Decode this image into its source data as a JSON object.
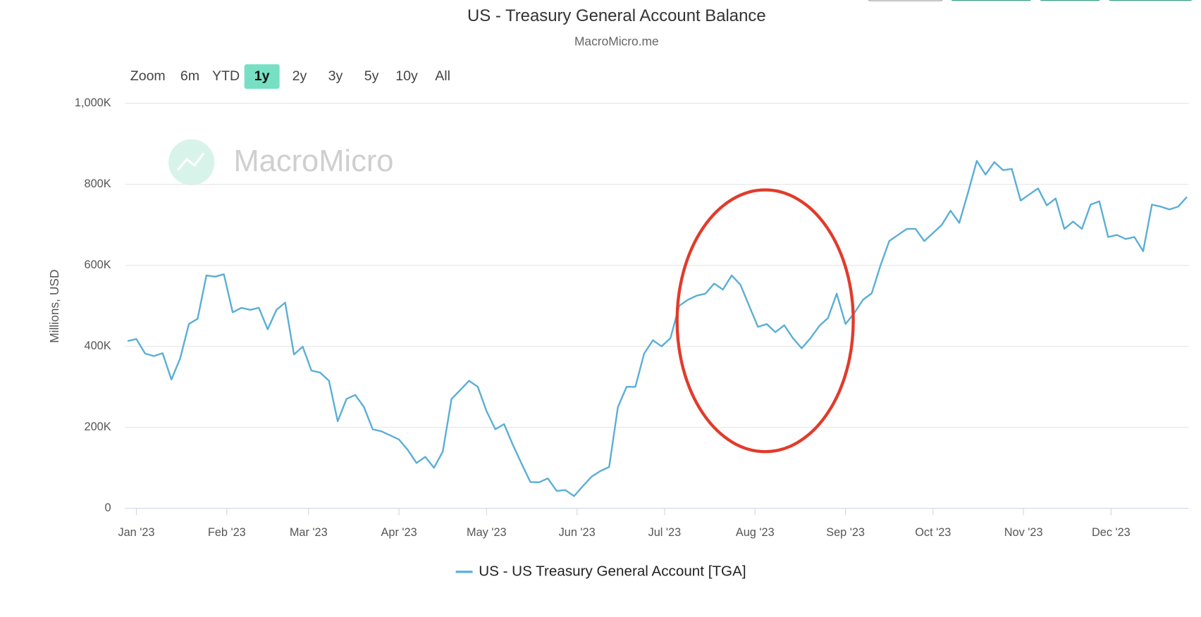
{
  "chart_data": {
    "type": "line",
    "title": "US - Treasury General Account Balance",
    "subtitle": "MacroMicro.me",
    "watermark": "MacroMicro",
    "y_label": "Millions, USD",
    "range_selector": {
      "label": "Zoom",
      "buttons": [
        "6m",
        "YTD",
        "1y",
        "2y",
        "3y",
        "5y",
        "10y",
        "All"
      ],
      "selected": 2
    },
    "grid": true,
    "ylim": [
      0,
      1000000
    ],
    "yticks": [
      0,
      {
        "value": 200000,
        "label": "200K"
      },
      {
        "value": 400000,
        "label": "400K"
      },
      {
        "value": 600000,
        "label": "600K"
      },
      {
        "value": 800000,
        "label": "800K"
      },
      {
        "value": 1000000,
        "label": "1,000K"
      }
    ],
    "xticks": [
      {
        "value": 1,
        "label": "Jan '23"
      },
      {
        "value": 11.333,
        "label": "Feb '23"
      },
      {
        "value": 20.667,
        "label": "Mar '23"
      },
      {
        "value": 31,
        "label": "Apr '23"
      },
      {
        "value": 41,
        "label": "May '23"
      },
      {
        "value": 51.333,
        "label": "Jun '23"
      },
      {
        "value": 61.333,
        "label": "Jul '23"
      },
      {
        "value": 71.667,
        "label": "Aug '23"
      },
      {
        "value": 82,
        "label": "Sep '23"
      },
      {
        "value": 92,
        "label": "Oct '23"
      },
      {
        "value": 102.333,
        "label": "Nov '23"
      },
      {
        "value": 112.333,
        "label": "Dec '23"
      }
    ],
    "categories": [
      null,
      null,
      null,
      null,
      null,
      null,
      null,
      null,
      null,
      null,
      null,
      null,
      null,
      null,
      null,
      null,
      null,
      null,
      null,
      null,
      null,
      null,
      null,
      null,
      null,
      null,
      null,
      null,
      null,
      null,
      null,
      null,
      null,
      null,
      null,
      null,
      null,
      null,
      null,
      null,
      null,
      null,
      null,
      null,
      null,
      null,
      null,
      null,
      null,
      null,
      null,
      null,
      null,
      null,
      null,
      null,
      null,
      null,
      null,
      null,
      null,
      null,
      null,
      null,
      null,
      null,
      null,
      null,
      null,
      null,
      null,
      null,
      null,
      null,
      null,
      null,
      null,
      null,
      null,
      null,
      null,
      null,
      null,
      null,
      null,
      null,
      null,
      null,
      null,
      null,
      null,
      null,
      null,
      null,
      null,
      null,
      null,
      null,
      null,
      null,
      null,
      null,
      null,
      null,
      null,
      null,
      null,
      null,
      null,
      null,
      null,
      null,
      null,
      null,
      null,
      null,
      null,
      null,
      null,
      null,
      null,
      null
    ],
    "series": [
      {
        "name": "US - US Treasury General Account [TGA]",
        "color": "#5aaed6",
        "values": [
          413000,
          418000,
          382000,
          376000,
          383000,
          318000,
          370000,
          455000,
          468000,
          575000,
          572000,
          578000,
          484000,
          495000,
          490000,
          495000,
          442000,
          490000,
          508000,
          380000,
          399000,
          340000,
          335000,
          315000,
          215000,
          270000,
          280000,
          250000,
          195000,
          190000,
          180000,
          170000,
          144000,
          112000,
          127000,
          100000,
          140000,
          270000,
          292000,
          315000,
          300000,
          240000,
          195000,
          208000,
          157000,
          110000,
          65000,
          64000,
          74000,
          43000,
          45000,
          30000,
          55000,
          78000,
          92000,
          102000,
          250000,
          300000,
          300000,
          382000,
          415000,
          400000,
          420000,
          500000,
          515000,
          525000,
          530000,
          555000,
          540000,
          575000,
          552000,
          500000,
          448000,
          455000,
          435000,
          452000,
          420000,
          395000,
          420000,
          450000,
          470000,
          530000,
          455000,
          482000,
          515000,
          531000,
          600000,
          660000,
          675000,
          690000,
          690000,
          660000,
          680000,
          700000,
          735000,
          705000,
          780000,
          858000,
          824000,
          855000,
          835000,
          838000,
          760000,
          775000,
          790000,
          748000,
          765000,
          690000,
          708000,
          690000,
          750000,
          758000,
          670000,
          675000,
          665000,
          670000,
          635000,
          750000,
          745000,
          738000,
          745000,
          769000
        ]
      }
    ]
  }
}
